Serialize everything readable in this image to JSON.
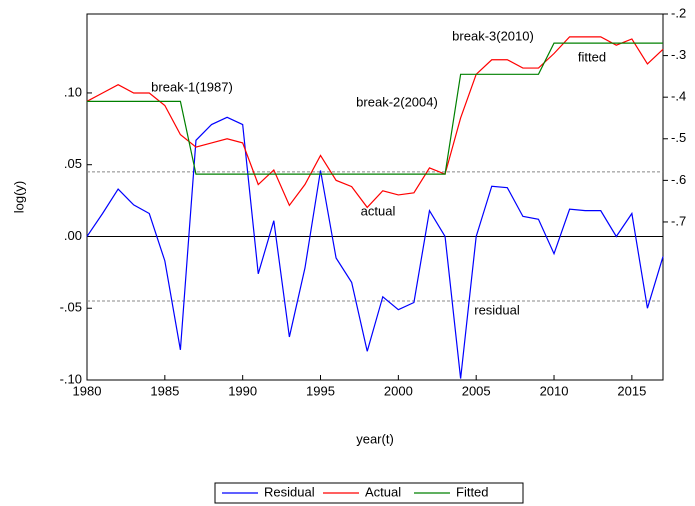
{
  "chart_data": {
    "type": "line",
    "y_label": "log(y)",
    "x_label": "year(t)",
    "x": [
      1980,
      1981,
      1982,
      1983,
      1984,
      1985,
      1986,
      1987,
      1988,
      1989,
      1990,
      1991,
      1992,
      1993,
      1994,
      1995,
      1996,
      1997,
      1998,
      1999,
      2000,
      2001,
      2002,
      2003,
      2004,
      2005,
      2006,
      2007,
      2008,
      2009,
      2010,
      2011,
      2012,
      2013,
      2014,
      2015,
      2016,
      2017
    ],
    "xlim": [
      1980,
      2017
    ],
    "xticks": [
      1980,
      1985,
      1990,
      1995,
      2000,
      2005,
      2010,
      2015
    ],
    "ylim": [
      -0.1,
      0.155
    ],
    "yticks": [
      {
        "value": -0.1,
        "label": "-.10"
      },
      {
        "value": -0.05,
        "label": "-.05"
      },
      {
        "value": 0,
        "label": ".00"
      },
      {
        "value": 0.05,
        "label": ".05"
      },
      {
        "value": 0.1,
        "label": ".10"
      }
    ],
    "y2lim": [
      -1.08,
      -0.2
    ],
    "y2ticks": [
      {
        "value": -0.7,
        "label": "-.7"
      },
      {
        "value": -0.6,
        "label": "-.6"
      },
      {
        "value": -0.5,
        "label": "-.5"
      },
      {
        "value": -0.4,
        "label": "-.4"
      },
      {
        "value": -0.3,
        "label": "-.3"
      },
      {
        "value": -0.2,
        "label": "-.2"
      }
    ],
    "std_bands": [
      0.045,
      -0.045
    ],
    "series": [
      {
        "name": "Residual",
        "color": "#0000ff",
        "values": [
          0.0,
          0.016,
          0.033,
          0.022,
          0.016,
          -0.017,
          -0.079,
          0.067,
          0.078,
          0.083,
          0.078,
          -0.026,
          0.011,
          -0.07,
          -0.022,
          0.046,
          -0.015,
          -0.032,
          -0.08,
          -0.042,
          -0.051,
          -0.046,
          0.018,
          0.0,
          -0.099,
          0.0,
          0.035,
          0.034,
          0.014,
          0.012,
          -0.012,
          0.019,
          0.018,
          0.018,
          0.0,
          0.016,
          -0.05,
          -0.014
        ]
      },
      {
        "name": "Actual",
        "color": "#ff0000",
        "axis": "y2",
        "values": [
          -0.41,
          -0.39,
          -0.37,
          -0.39,
          -0.39,
          -0.42,
          -0.49,
          -0.52,
          -0.51,
          -0.5,
          -0.51,
          -0.61,
          -0.575,
          -0.66,
          -0.61,
          -0.54,
          -0.6,
          -0.615,
          -0.665,
          -0.625,
          -0.635,
          -0.63,
          -0.57,
          -0.585,
          -0.45,
          -0.345,
          -0.31,
          -0.31,
          -0.33,
          -0.33,
          -0.295,
          -0.255,
          -0.255,
          -0.255,
          -0.275,
          -0.26,
          -0.32,
          -0.285
        ]
      },
      {
        "name": "Fitted",
        "color": "#008000",
        "axis": "y2",
        "values": [
          -0.41,
          -0.41,
          -0.41,
          -0.41,
          -0.41,
          -0.41,
          -0.41,
          -0.585,
          -0.585,
          -0.585,
          -0.585,
          -0.585,
          -0.585,
          -0.585,
          -0.585,
          -0.585,
          -0.585,
          -0.585,
          -0.585,
          -0.585,
          -0.585,
          -0.585,
          -0.585,
          -0.585,
          -0.345,
          -0.345,
          -0.345,
          -0.345,
          -0.345,
          -0.345,
          -0.27,
          -0.27,
          -0.27,
          -0.27,
          -0.27,
          -0.27,
          -0.27,
          -0.27
        ]
      }
    ],
    "annotations": [
      "break-1(1987)",
      "break-2(2004)",
      "break-3(2010)",
      "fitted",
      "actual",
      "residual"
    ]
  }
}
